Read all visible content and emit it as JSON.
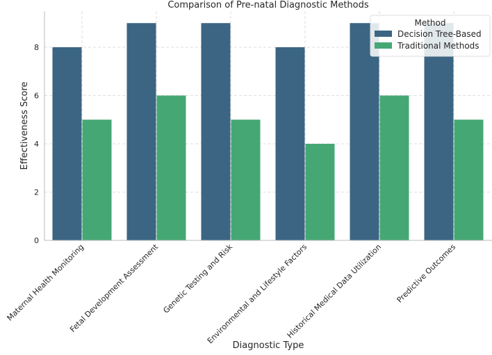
{
  "chart_data": {
    "type": "bar",
    "title": "Comparison of Pre-natal Diagnostic Methods",
    "xlabel": "Diagnostic Type",
    "ylabel": "Effectiveness Score",
    "categories": [
      "Maternal Health Monitoring",
      "Fetal Development Assessment",
      "Genetic Testing and Risk",
      "Environmental and Lifestyle Factors",
      "Historical Medical Data Utilization",
      "Predictive Outcomes"
    ],
    "series": [
      {
        "name": "Decision Tree-Based",
        "values": [
          8,
          9,
          9,
          8,
          9,
          9
        ],
        "color": "#3b6583"
      },
      {
        "name": "Traditional Methods",
        "values": [
          5,
          6,
          5,
          4,
          6,
          5
        ],
        "color": "#45a874"
      }
    ],
    "ylim": [
      0,
      9.5
    ],
    "yticks": [
      0,
      2,
      4,
      6,
      8
    ],
    "grid": true,
    "legend": {
      "title": "Method",
      "placement": "top-right"
    }
  }
}
